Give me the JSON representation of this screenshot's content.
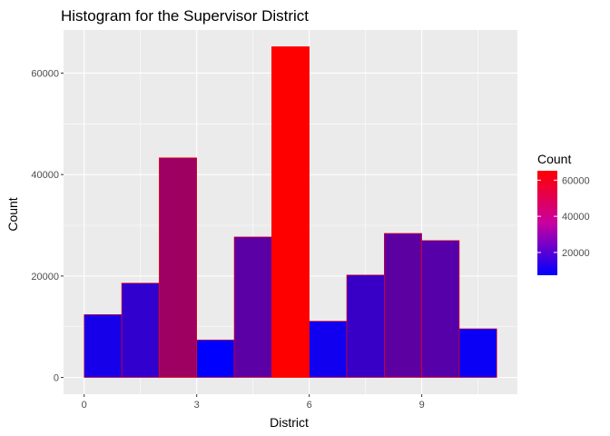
{
  "chart_data": {
    "type": "bar",
    "title": "Histogram for the Supervisor District",
    "xlabel": "District",
    "ylabel": "Count",
    "bin_width": 1,
    "bins": [
      {
        "x0": 0,
        "x1": 1,
        "count": 12400
      },
      {
        "x0": 1,
        "x1": 2,
        "count": 18600
      },
      {
        "x0": 2,
        "x1": 3,
        "count": 43300
      },
      {
        "x0": 3,
        "x1": 4,
        "count": 7400
      },
      {
        "x0": 4,
        "x1": 5,
        "count": 27700
      },
      {
        "x0": 5,
        "x1": 6,
        "count": 65200
      },
      {
        "x0": 6,
        "x1": 7,
        "count": 11100
      },
      {
        "x0": 7,
        "x1": 8,
        "count": 20200
      },
      {
        "x0": 8,
        "x1": 9,
        "count": 28400
      },
      {
        "x0": 9,
        "x1": 10,
        "count": 27000
      },
      {
        "x0": 10,
        "x1": 11,
        "count": 9600
      }
    ],
    "xlim": [
      -0.55,
      11.55
    ],
    "ylim": [
      -3300,
      68500
    ],
    "x_ticks": [
      0,
      3,
      6,
      9
    ],
    "x_tick_labels": [
      "0",
      "3",
      "6",
      "9"
    ],
    "y_ticks": [
      0,
      20000,
      40000,
      60000
    ],
    "y_tick_labels": [
      "0",
      "20000",
      "40000",
      "60000"
    ],
    "grid": true,
    "panel_color": "#ebebeb",
    "bar_outline_color": "#ff0000",
    "fill_scale": {
      "low_color": "#0000ff",
      "high_color": "#ff0000",
      "min": 7400,
      "max": 65200
    },
    "legend": {
      "title": "Count",
      "placement": "right",
      "ticks": [
        20000,
        40000,
        60000
      ],
      "tick_labels": [
        "20000",
        "40000",
        "60000"
      ]
    }
  }
}
